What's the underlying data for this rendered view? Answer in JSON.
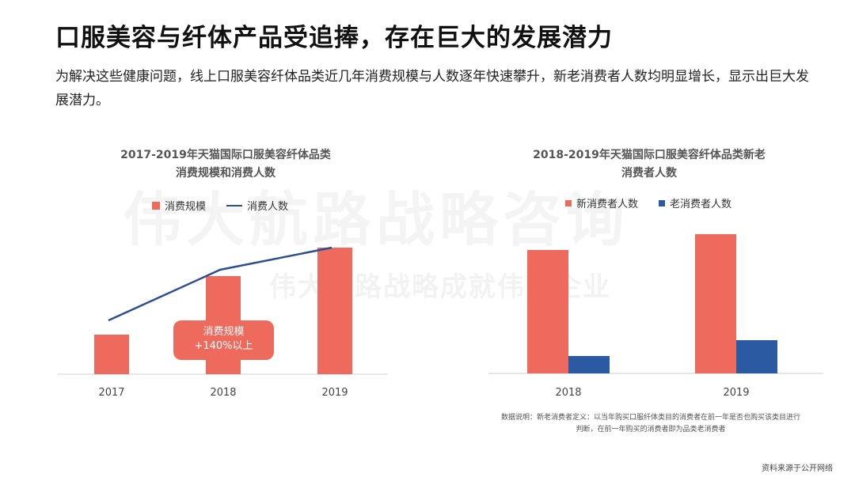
{
  "title": "口服美容与纤体产品受追捧，存在巨大的发展潜力",
  "subtitle": "为解决这些健康问题，线上口服美容纤体品类近几年消费规模与人数逐年快速攀升，新老消费者人数均明显增长，显示出巨大发展潜力。",
  "watermark": "伟大航路战略咨询",
  "watermark_sub": "伟大航路战略成就伟大企业",
  "colors": {
    "red": "#ee6a5c",
    "blue": "#2b5aa3",
    "line": "#2e4f8f"
  },
  "chart_data": [
    {
      "type": "bar",
      "title_line1": "2017-2019年天猫国际口服美容纤体品类",
      "title_line2": "消费规模和消费人数",
      "categories": [
        "2017",
        "2018",
        "2019"
      ],
      "series": [
        {
          "name": "消费规模",
          "kind": "bar",
          "values": [
            25,
            62,
            80
          ]
        },
        {
          "name": "消费人数",
          "kind": "line",
          "values": [
            34,
            66,
            80
          ]
        }
      ],
      "ylim": [
        0,
        100
      ],
      "annotation": {
        "line1": "消费规模",
        "line2": "+140%以上"
      }
    },
    {
      "type": "bar",
      "title_line1": "2018-2019年天猫国际口服美容纤体品类新老",
      "title_line2": "消费者人数",
      "categories": [
        "2018",
        "2019"
      ],
      "series": [
        {
          "name": "新消费者人数",
          "values": [
            78,
            88
          ]
        },
        {
          "name": "老消费者人数",
          "values": [
            11,
            21
          ]
        }
      ],
      "ylim": [
        0,
        100
      ],
      "note_line1": "数据说明：新老消费者定义：以当年购买口服纤体类目的消费者在前一年是否也购买该类目进行",
      "note_line2": "判断，在前一年购买的消费者即为品类老消费者"
    }
  ],
  "source": "资料来源于公开网络"
}
